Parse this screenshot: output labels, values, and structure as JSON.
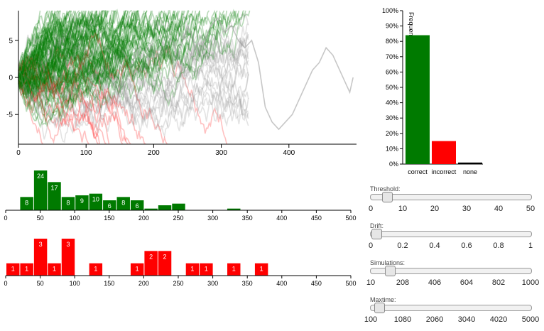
{
  "trajectory_plot": {
    "chart_data": {
      "type": "line",
      "x_ticks": [
        "0",
        "100",
        "200",
        "300",
        "400"
      ],
      "y_ticks": [
        "5",
        "0",
        "-5"
      ],
      "xlim": [
        0,
        500
      ],
      "ylim": [
        -9,
        9
      ],
      "threshold": 9,
      "colors": {
        "correct": "#007a00",
        "incorrect": "#ff2020",
        "none": "#999999"
      },
      "series_summary": "many random-walk trajectories; green terminate at upper bound, red at lower bound, one grey continues to ~490",
      "grey_path": [
        [
          230,
          1
        ],
        [
          240,
          4
        ],
        [
          250,
          7
        ],
        [
          255,
          6
        ],
        [
          265,
          3
        ],
        [
          275,
          5
        ],
        [
          285,
          7
        ],
        [
          295,
          8
        ],
        [
          305,
          6
        ],
        [
          315,
          7
        ],
        [
          325,
          5
        ],
        [
          335,
          4
        ],
        [
          345,
          5
        ],
        [
          355,
          2
        ],
        [
          360,
          -1
        ],
        [
          365,
          -4
        ],
        [
          375,
          -6
        ],
        [
          385,
          -7
        ],
        [
          395,
          -6
        ],
        [
          405,
          -5
        ],
        [
          415,
          -3
        ],
        [
          425,
          -1
        ],
        [
          435,
          1
        ],
        [
          445,
          2
        ],
        [
          455,
          4
        ],
        [
          465,
          3
        ],
        [
          475,
          1
        ],
        [
          485,
          -1
        ],
        [
          490,
          -2
        ],
        [
          495,
          0
        ]
      ]
    }
  },
  "correct_hist": {
    "chart_data": {
      "type": "bar",
      "x_ticks": [
        "0",
        "50",
        "100",
        "150",
        "200",
        "250",
        "300",
        "350",
        "400",
        "450",
        "500"
      ],
      "xlim": [
        0,
        500
      ],
      "bin_width": 20,
      "bins": [
        {
          "x0": 20,
          "count": 8
        },
        {
          "x0": 40,
          "count": 24
        },
        {
          "x0": 60,
          "count": 17
        },
        {
          "x0": 80,
          "count": 8
        },
        {
          "x0": 100,
          "count": 9
        },
        {
          "x0": 120,
          "count": 10
        },
        {
          "x0": 140,
          "count": 6
        },
        {
          "x0": 160,
          "count": 8
        },
        {
          "x0": 180,
          "count": 6
        },
        {
          "x0": 200,
          "count": 1
        },
        {
          "x0": 220,
          "count": 3
        },
        {
          "x0": 240,
          "count": 4
        },
        {
          "x0": 320,
          "count": 1
        }
      ],
      "max_count": 24,
      "color": "#007a00"
    }
  },
  "incorrect_hist": {
    "chart_data": {
      "type": "bar",
      "x_ticks": [
        "0",
        "50",
        "100",
        "150",
        "200",
        "250",
        "300",
        "350",
        "400",
        "450",
        "500"
      ],
      "xlim": [
        0,
        500
      ],
      "bin_width": 20,
      "bins": [
        {
          "x0": 0,
          "count": 1
        },
        {
          "x0": 20,
          "count": 1
        },
        {
          "x0": 40,
          "count": 3
        },
        {
          "x0": 60,
          "count": 1
        },
        {
          "x0": 80,
          "count": 3
        },
        {
          "x0": 120,
          "count": 1
        },
        {
          "x0": 180,
          "count": 1
        },
        {
          "x0": 200,
          "count": 2
        },
        {
          "x0": 220,
          "count": 2
        },
        {
          "x0": 260,
          "count": 1
        },
        {
          "x0": 280,
          "count": 1
        },
        {
          "x0": 320,
          "count": 1
        },
        {
          "x0": 360,
          "count": 1
        }
      ],
      "max_count": 3,
      "color": "#ff0000"
    }
  },
  "frequency_chart": {
    "chart_data": {
      "type": "bar",
      "ylabel": "Frequency",
      "y_ticks": [
        "0%",
        "10%",
        "20%",
        "30%",
        "40%",
        "50%",
        "60%",
        "70%",
        "80%",
        "90%",
        "100%"
      ],
      "ylim": [
        0,
        100
      ],
      "categories": [
        "correct",
        "incorrect",
        "none"
      ],
      "values": [
        84,
        15,
        1
      ],
      "colors": [
        "#007a00",
        "#ff0000",
        "#000000"
      ]
    }
  },
  "sliders": [
    {
      "label": "Threshold:",
      "value_fraction": 0.08,
      "ticks": [
        "0",
        "10",
        "20",
        "30",
        "40",
        "50"
      ]
    },
    {
      "label": "Drift:",
      "value_fraction": 0.01,
      "ticks": [
        "0",
        "0.2",
        "0.4",
        "0.6",
        "0.8",
        "1"
      ]
    },
    {
      "label": "Simulations:",
      "value_fraction": 0.1,
      "ticks": [
        "10",
        "208",
        "406",
        "604",
        "802",
        "1000"
      ]
    },
    {
      "label": "Maxtime:",
      "value_fraction": 0.03,
      "ticks": [
        "100",
        "1080",
        "2060",
        "3040",
        "4020",
        "5000"
      ]
    }
  ]
}
